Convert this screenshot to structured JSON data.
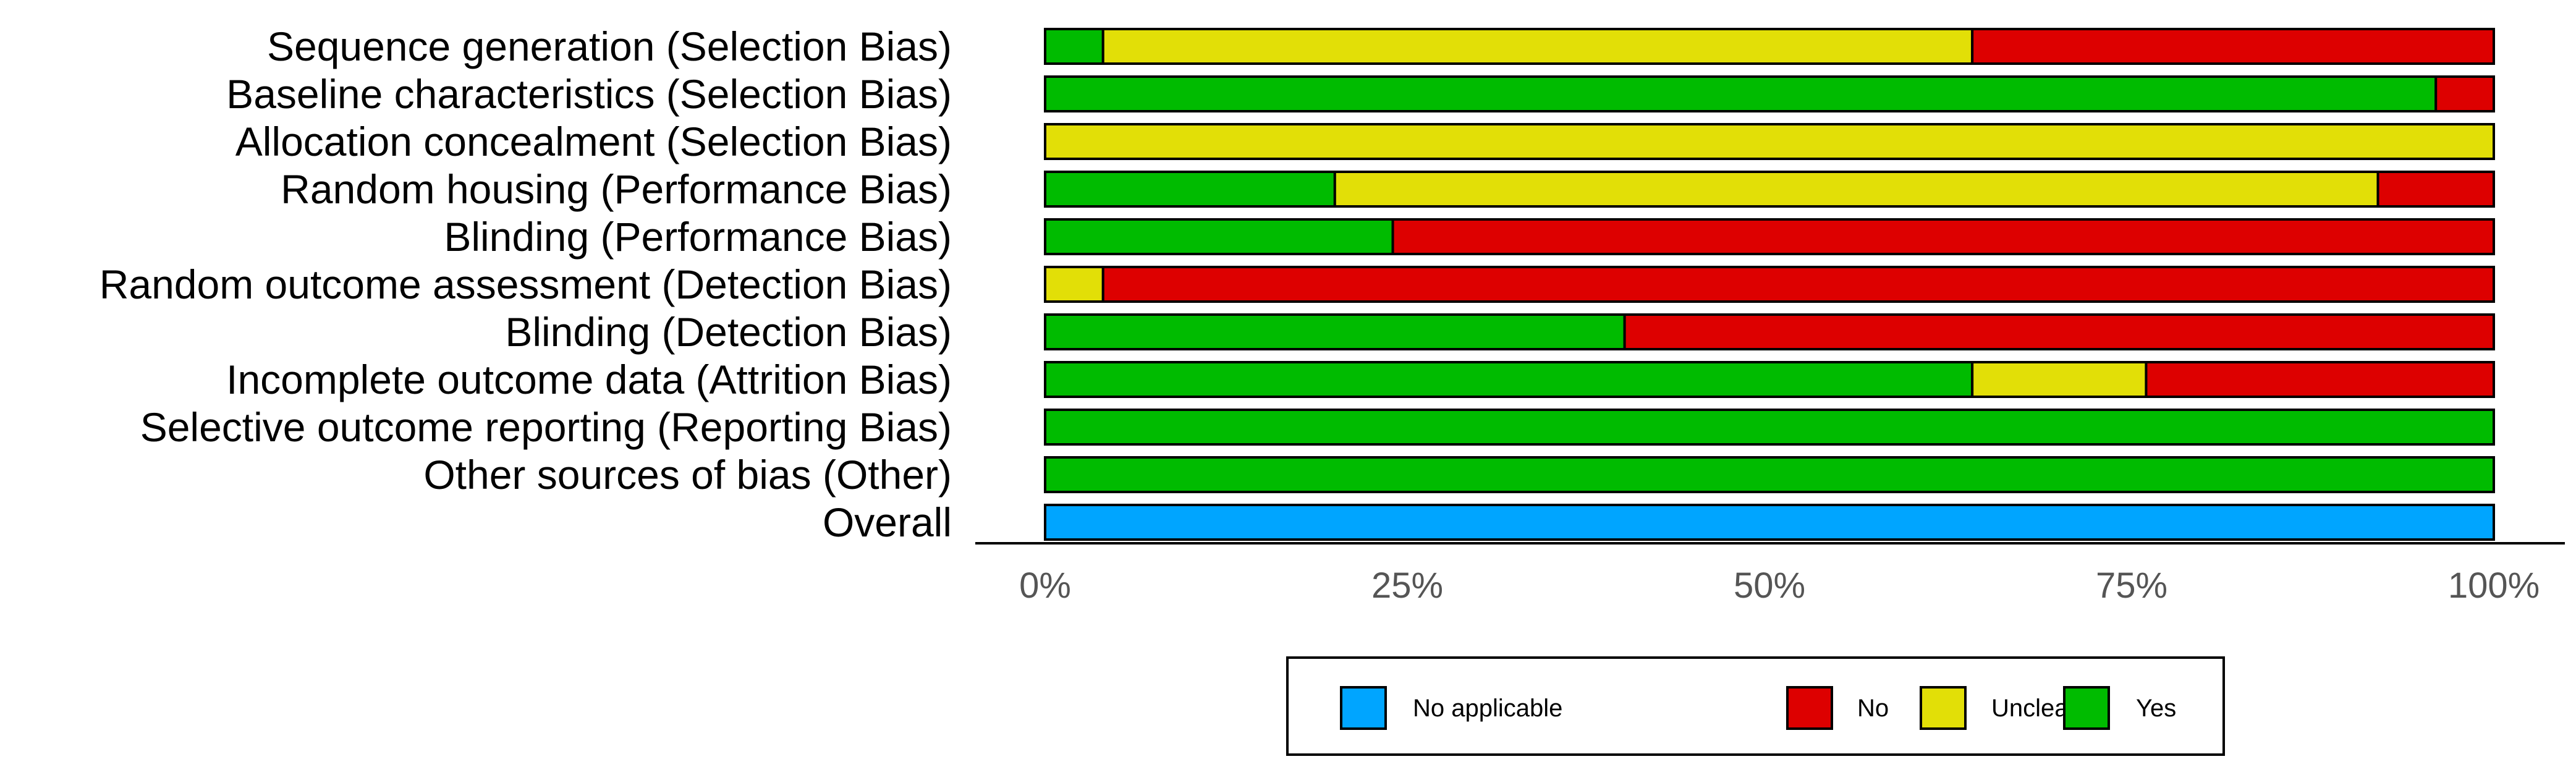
{
  "chart_data": {
    "type": "bar",
    "orientation": "horizontal",
    "stacked": true,
    "categories": [
      "Sequence generation (Selection Bias)",
      "Baseline characteristics (Selection Bias)",
      "Allocation concealment (Selection Bias)",
      "Random housing (Performance Bias)",
      "Blinding (Performance Bias)",
      "Random outcome assessment (Detection Bias)",
      "Blinding (Detection Bias)",
      "Incomplete outcome data (Attrition Bias)",
      "Selective outcome reporting (Reporting Bias)",
      "Other sources of bias (Other)",
      "Overall"
    ],
    "series": [
      {
        "name": "Yes",
        "color": "#00BB00",
        "values": [
          4,
          96,
          0,
          20,
          24,
          0,
          40,
          64,
          100,
          100,
          0
        ]
      },
      {
        "name": "Unclear",
        "color": "#E2DF07",
        "values": [
          60,
          0,
          100,
          72,
          0,
          4,
          0,
          12,
          0,
          0,
          0
        ]
      },
      {
        "name": "No",
        "color": "#DD0000",
        "values": [
          36,
          4,
          0,
          8,
          76,
          96,
          60,
          24,
          0,
          0,
          0
        ]
      },
      {
        "name": "No applicable",
        "color": "#00A5FF",
        "values": [
          0,
          0,
          0,
          0,
          0,
          0,
          0,
          0,
          0,
          0,
          100
        ]
      }
    ],
    "xlim": [
      0,
      100
    ],
    "x_ticks": [
      "0%",
      "25%",
      "50%",
      "75%",
      "100%"
    ],
    "xlabel": "",
    "ylabel": "",
    "grid": false,
    "legend": {
      "position": "bottom",
      "entries": [
        {
          "label": "No applicable",
          "color": "#00A5FF"
        },
        {
          "label": "No",
          "color": "#DD0000"
        },
        {
          "label": "Unclear",
          "color": "#E2DF07"
        },
        {
          "label": "Yes",
          "color": "#00BB00"
        }
      ]
    }
  }
}
